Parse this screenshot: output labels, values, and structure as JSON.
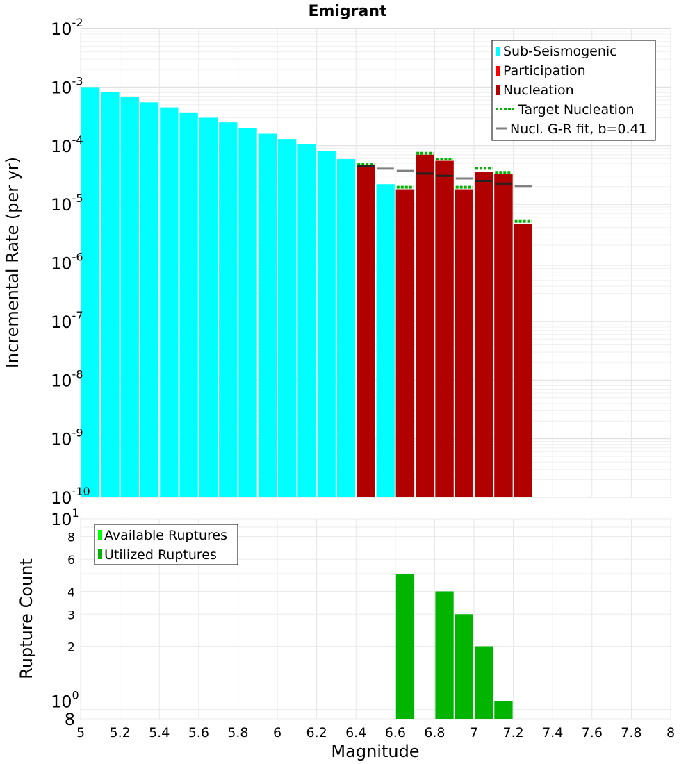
{
  "chart_data": [
    {
      "type": "bar",
      "title": "Emigrant",
      "ylabel": "Incremental Rate (per yr)",
      "y_scale": "log",
      "ylim": [
        1e-10,
        0.01
      ],
      "xlim": [
        5,
        8
      ],
      "bin_width": 0.1,
      "y_tick_exponents": [
        "-10",
        "-9",
        "-8",
        "-7",
        "-6",
        "-5",
        "-4",
        "-3",
        "-2"
      ],
      "legend_position": "top-right",
      "legend": [
        "Sub-Seismogenic",
        "Participation",
        "Nucleation",
        "Target Nucleation",
        "Nucl. G-R fit, b=0.41"
      ],
      "colors": {
        "sub_seismogenic": "#00ffff",
        "participation": "#ff0000",
        "nucleation": "#b00000",
        "target_nucleation": "#00b400",
        "gr_fit": "#808080"
      },
      "series": [
        {
          "name": "Sub-Seismogenic",
          "x": [
            5.05,
            5.15,
            5.25,
            5.35,
            5.45,
            5.55,
            5.65,
            5.75,
            5.85,
            5.95,
            6.05,
            6.15,
            6.25,
            6.35,
            6.55
          ],
          "values": [
            0.001,
            0.00082,
            0.00067,
            0.00055,
            0.00045,
            0.00037,
            0.0003,
            0.00025,
            0.0002,
            0.00016,
            0.00013,
            0.000105,
            8.2e-05,
            5.9e-05,
            2.2e-05
          ]
        },
        {
          "name": "Participation",
          "x": [
            6.45,
            6.65,
            6.75,
            6.85,
            6.95,
            7.05,
            7.15,
            7.25
          ],
          "values": [
            4.6e-05,
            1.8e-05,
            7e-05,
            5.5e-05,
            1.8e-05,
            3.6e-05,
            3.3e-05,
            4.6e-06
          ]
        },
        {
          "name": "Nucleation",
          "x": [
            6.45,
            6.65,
            6.75,
            6.85,
            6.95,
            7.05,
            7.15,
            7.25
          ],
          "values": [
            4.6e-05,
            1.8e-05,
            7e-05,
            5.5e-05,
            1.8e-05,
            3.6e-05,
            3.3e-05,
            4.6e-06
          ]
        },
        {
          "name": "Target Nucleation",
          "x": [
            6.45,
            6.65,
            6.75,
            6.85,
            6.95,
            7.05,
            7.15,
            7.25
          ],
          "values": [
            4.8e-05,
            1.95e-05,
            7.4e-05,
            5.9e-05,
            1.95e-05,
            4.1e-05,
            3.5e-05,
            5.1e-06
          ]
        },
        {
          "name": "Nucl. G-R fit, b=0.41",
          "x": [
            6.45,
            6.55,
            6.65,
            6.75,
            6.85,
            6.95,
            7.05,
            7.15,
            7.25
          ],
          "values": [
            4.5e-05,
            4.05e-05,
            3.7e-05,
            3.35e-05,
            3.05e-05,
            2.75e-05,
            2.5e-05,
            2.25e-05,
            2.05e-05
          ]
        }
      ]
    },
    {
      "type": "bar",
      "xlabel": "Magnitude",
      "ylabel": "Rupture Count",
      "y_scale": "log",
      "ylim": [
        0.8,
        10
      ],
      "xlim": [
        5,
        8
      ],
      "bin_width": 0.1,
      "x_ticks": [
        "5",
        "5.2",
        "5.4",
        "5.6",
        "5.8",
        "6",
        "6.2",
        "6.4",
        "6.6",
        "6.8",
        "7",
        "7.2",
        "7.4",
        "7.6",
        "7.8",
        "8"
      ],
      "y_tick_labels": [
        {
          "v": 2,
          "t": "2"
        },
        {
          "v": 3,
          "t": "3"
        },
        {
          "v": 4,
          "t": "4"
        },
        {
          "v": 6,
          "t": "6"
        },
        {
          "v": 8,
          "t": "8"
        }
      ],
      "y_big_labels": [
        {
          "v": 1,
          "t": "10",
          "e": "0"
        },
        {
          "v": 10,
          "t": "10",
          "e": "1"
        },
        {
          "v": 0.8,
          "t": "8",
          "e": ""
        }
      ],
      "legend_position": "top-left",
      "legend": [
        "Available Ruptures",
        "Utilized Ruptures"
      ],
      "colors": {
        "available": "#00ff00",
        "utilized": "#00b400"
      },
      "series": [
        {
          "name": "Utilized Ruptures",
          "x": [
            6.65,
            6.85,
            6.95,
            7.05,
            7.15
          ],
          "values": [
            5,
            4,
            3,
            2,
            1
          ]
        }
      ]
    }
  ]
}
